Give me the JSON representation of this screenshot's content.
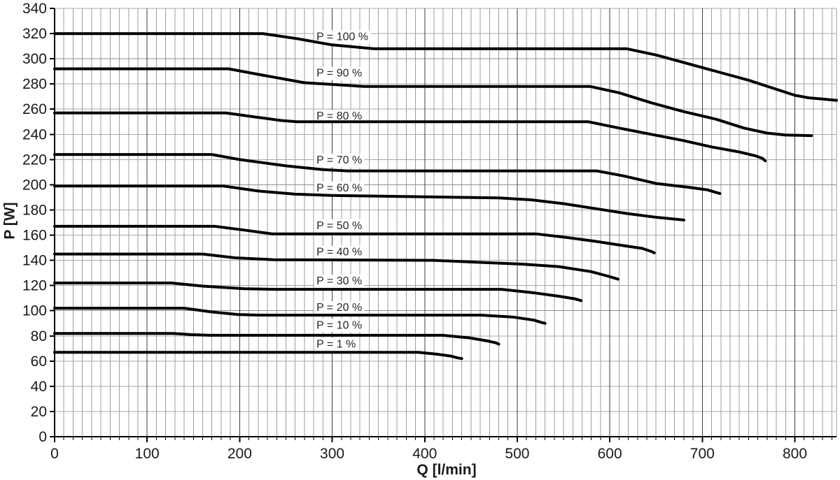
{
  "chart_data": {
    "type": "line",
    "title": "",
    "xlabel": "Q [l/min]",
    "ylabel": "P [W]",
    "xlim": [
      0,
      845
    ],
    "ylim": [
      0,
      340
    ],
    "x_ticks": [
      0,
      100,
      200,
      300,
      400,
      500,
      600,
      700,
      800
    ],
    "x_minor_tick_step": 10,
    "y_ticks": [
      0,
      20,
      40,
      60,
      80,
      100,
      120,
      140,
      160,
      180,
      200,
      220,
      240,
      260,
      280,
      300,
      320,
      340
    ],
    "grid": "both",
    "legend_position": "inline-labels-on-curves",
    "line_color": "#000000",
    "line_width": 4,
    "minor_grid_color": "#9e9e9e",
    "major_grid_color": "#3c3c3c",
    "horizontal_grid_color": "#a8a8a8",
    "horizontal_major_grid_color": "#8f8f8f",
    "axis_color": "#000000",
    "label_anchor_q": 283,
    "series": [
      {
        "name": "P = 100 %",
        "label_p": 318,
        "points": [
          [
            0,
            320
          ],
          [
            225,
            320
          ],
          [
            262,
            316
          ],
          [
            300,
            311
          ],
          [
            345,
            308
          ],
          [
            618,
            308
          ],
          [
            650,
            303
          ],
          [
            685,
            296
          ],
          [
            720,
            289
          ],
          [
            750,
            283
          ],
          [
            775,
            277
          ],
          [
            800,
            271
          ],
          [
            815,
            269
          ],
          [
            830,
            268
          ],
          [
            845,
            267
          ]
        ]
      },
      {
        "name": "P = 90 %",
        "label_p": 289,
        "points": [
          [
            0,
            292
          ],
          [
            188,
            292
          ],
          [
            225,
            287
          ],
          [
            270,
            281
          ],
          [
            335,
            278
          ],
          [
            579,
            278
          ],
          [
            610,
            273
          ],
          [
            645,
            265
          ],
          [
            680,
            258
          ],
          [
            715,
            252
          ],
          [
            745,
            245
          ],
          [
            770,
            241
          ],
          [
            790,
            239.5
          ],
          [
            818,
            239
          ]
        ]
      },
      {
        "name": "P = 80 %",
        "label_p": 255,
        "points": [
          [
            0,
            257
          ],
          [
            185,
            257
          ],
          [
            215,
            254
          ],
          [
            245,
            251
          ],
          [
            262,
            250
          ],
          [
            577,
            250
          ],
          [
            610,
            245
          ],
          [
            645,
            240
          ],
          [
            680,
            235
          ],
          [
            710,
            230
          ],
          [
            740,
            226
          ],
          [
            757,
            223
          ],
          [
            765,
            221
          ],
          [
            768,
            219
          ]
        ]
      },
      {
        "name": "P = 70 %",
        "label_p": 220,
        "points": [
          [
            0,
            224
          ],
          [
            170,
            224
          ],
          [
            200,
            220
          ],
          [
            250,
            215
          ],
          [
            290,
            212
          ],
          [
            317,
            211
          ],
          [
            586,
            211
          ],
          [
            615,
            207
          ],
          [
            650,
            201
          ],
          [
            685,
            198
          ],
          [
            705,
            196
          ],
          [
            719,
            193
          ]
        ]
      },
      {
        "name": "P = 60 %",
        "label_p": 198,
        "points": [
          [
            0,
            199
          ],
          [
            182,
            199
          ],
          [
            220,
            195
          ],
          [
            260,
            192.5
          ],
          [
            300,
            191.5
          ],
          [
            480,
            189.5
          ],
          [
            515,
            188
          ],
          [
            550,
            185
          ],
          [
            585,
            181
          ],
          [
            620,
            177
          ],
          [
            652,
            174
          ],
          [
            680,
            172
          ]
        ]
      },
      {
        "name": "P = 50 %",
        "label_p": 168,
        "points": [
          [
            0,
            167
          ],
          [
            173,
            167
          ],
          [
            205,
            164
          ],
          [
            235,
            161
          ],
          [
            520,
            161
          ],
          [
            555,
            158
          ],
          [
            585,
            155
          ],
          [
            612,
            152
          ],
          [
            635,
            149.5
          ],
          [
            645,
            147
          ],
          [
            648,
            146
          ]
        ]
      },
      {
        "name": "P = 40 %",
        "label_p": 147,
        "points": [
          [
            0,
            145
          ],
          [
            160,
            145
          ],
          [
            195,
            142
          ],
          [
            237,
            140.5
          ],
          [
            410,
            140
          ],
          [
            455,
            138.5
          ],
          [
            505,
            137
          ],
          [
            545,
            135
          ],
          [
            580,
            131
          ],
          [
            600,
            127
          ],
          [
            609,
            125
          ]
        ]
      },
      {
        "name": "P = 30 %",
        "label_p": 124,
        "points": [
          [
            0,
            122
          ],
          [
            126,
            122
          ],
          [
            160,
            119.5
          ],
          [
            205,
            117.5
          ],
          [
            240,
            117
          ],
          [
            483,
            117
          ],
          [
            515,
            114.5
          ],
          [
            545,
            111.5
          ],
          [
            562,
            109.5
          ],
          [
            569,
            108
          ]
        ]
      },
      {
        "name": "P = 20 %",
        "label_p": 103,
        "points": [
          [
            0,
            102
          ],
          [
            140,
            102
          ],
          [
            170,
            99
          ],
          [
            198,
            97
          ],
          [
            220,
            96.5
          ],
          [
            460,
            96.5
          ],
          [
            495,
            95
          ],
          [
            518,
            92.5
          ],
          [
            527,
            90.5
          ],
          [
            530,
            90
          ]
        ]
      },
      {
        "name": "P = 10 %",
        "label_p": 89,
        "points": [
          [
            0,
            82
          ],
          [
            128,
            82
          ],
          [
            148,
            81
          ],
          [
            168,
            80.5
          ],
          [
            420,
            80.5
          ],
          [
            448,
            78.5
          ],
          [
            468,
            76
          ],
          [
            477,
            74.5
          ],
          [
            480,
            73.5
          ]
        ]
      },
      {
        "name": "P = 1 %",
        "label_p": 74,
        "points": [
          [
            0,
            67
          ],
          [
            393,
            67
          ],
          [
            413,
            65.5
          ],
          [
            428,
            64
          ],
          [
            436,
            62.5
          ],
          [
            440,
            62
          ]
        ]
      }
    ]
  }
}
